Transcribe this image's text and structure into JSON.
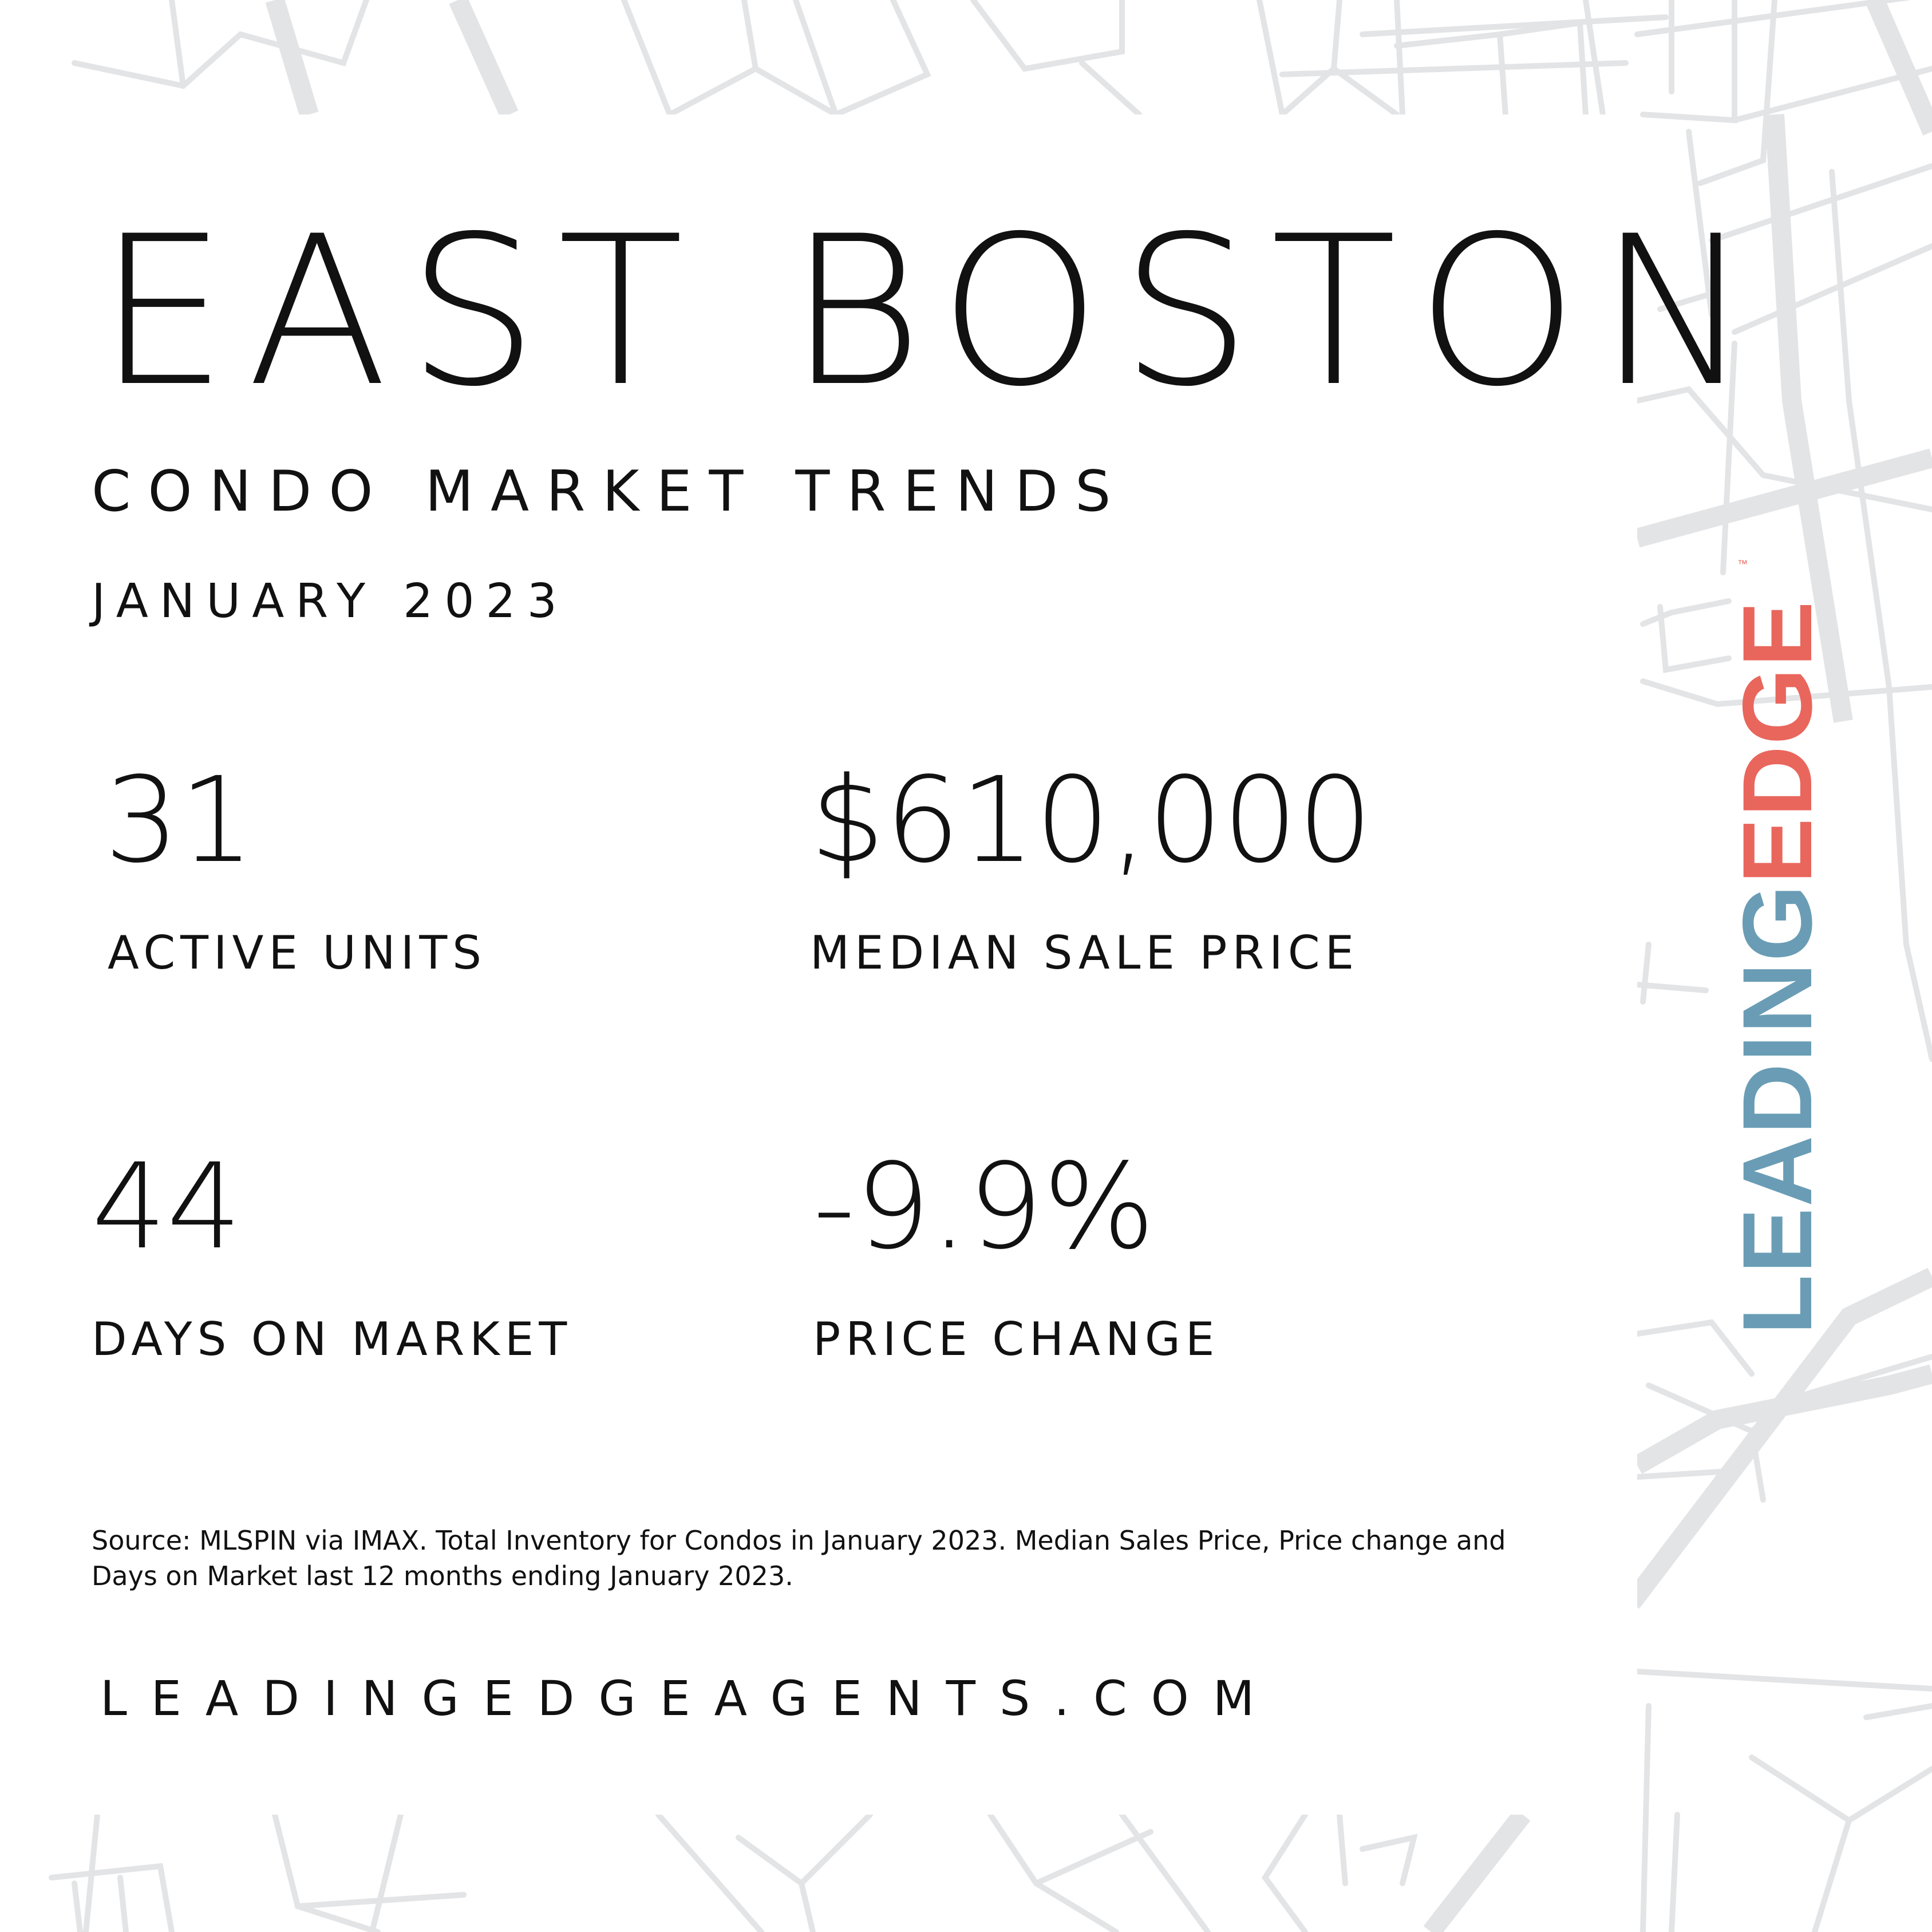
{
  "title": "EAST BOSTON",
  "subtitle": "CONDO MARKET TRENDS",
  "period": "JANUARY 2023",
  "stats": [
    {
      "value": "31",
      "label": "ACTIVE UNITS"
    },
    {
      "value": "$610,000",
      "label": "MEDIAN SALE PRICE"
    },
    {
      "value": "44",
      "label": "DAYS ON MARKET"
    },
    {
      "value": "-9.9%",
      "label": "PRICE CHANGE"
    }
  ],
  "source": "Source: MLSPIN via IMAX. Total Inventory for Condos in January 2023. Median Sales Price, Price change and Days on Market last 12 months ending January 2023.",
  "website": "LEADINGEDGEAGENTS.COM",
  "logo": {
    "part1": "LEADING",
    "part2": "EDGE",
    "tm": "™"
  },
  "colors": {
    "logo_blue": "#6a9db5",
    "logo_red": "#e9665c",
    "map_lines": "#e3e4e6",
    "text": "#111111"
  }
}
